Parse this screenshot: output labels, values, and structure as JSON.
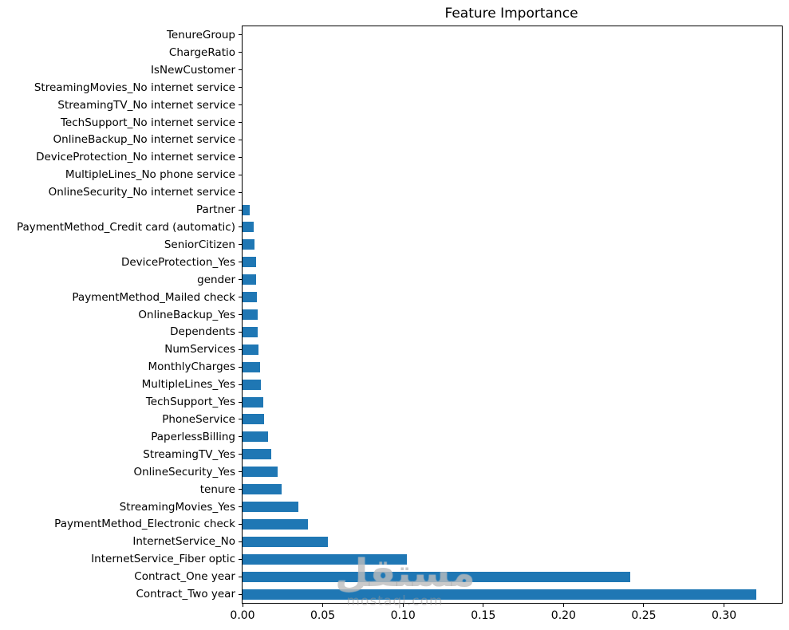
{
  "watermark": {
    "logo_text": "مستقل",
    "domain": "mostaql.com"
  },
  "chart_data": {
    "type": "bar",
    "orientation": "horizontal",
    "title": "Feature Importance",
    "xlabel": "",
    "ylabel": "",
    "grid": false,
    "legend": null,
    "bar_color": "#1f77b4",
    "spine_color": "#000000",
    "xlim": [
      0,
      0.336
    ],
    "x_ticks": [
      0.0,
      0.05,
      0.1,
      0.15,
      0.2,
      0.25,
      0.3
    ],
    "x_tick_labels": [
      "0.00",
      "0.05",
      "0.10",
      "0.15",
      "0.20",
      "0.25",
      "0.30"
    ],
    "categories": [
      "TenureGroup",
      "ChargeRatio",
      "IsNewCustomer",
      "StreamingMovies_No internet service",
      "StreamingTV_No internet service",
      "TechSupport_No internet service",
      "OnlineBackup_No internet service",
      "DeviceProtection_No internet service",
      "MultipleLines_No phone service",
      "OnlineSecurity_No internet service",
      "Partner",
      "PaymentMethod_Credit card (automatic)",
      "SeniorCitizen",
      "DeviceProtection_Yes",
      "gender",
      "PaymentMethod_Mailed check",
      "OnlineBackup_Yes",
      "Dependents",
      "NumServices",
      "MonthlyCharges",
      "MultipleLines_Yes",
      "TechSupport_Yes",
      "PhoneService",
      "PaperlessBilling",
      "StreamingTV_Yes",
      "OnlineSecurity_Yes",
      "tenure",
      "StreamingMovies_Yes",
      "PaymentMethod_Electronic check",
      "InternetService_No",
      "InternetService_Fiber optic",
      "Contract_One year",
      "Contract_Two year"
    ],
    "values": [
      0.0,
      0.0,
      0.0,
      0.0,
      0.0,
      0.0,
      0.0,
      0.0,
      0.0,
      0.0,
      0.0043,
      0.0068,
      0.0073,
      0.0084,
      0.0086,
      0.0088,
      0.0093,
      0.0094,
      0.0099,
      0.0109,
      0.0116,
      0.013,
      0.0134,
      0.0157,
      0.018,
      0.0217,
      0.0246,
      0.0346,
      0.0407,
      0.0534,
      0.1026,
      0.2415,
      0.32
    ]
  }
}
